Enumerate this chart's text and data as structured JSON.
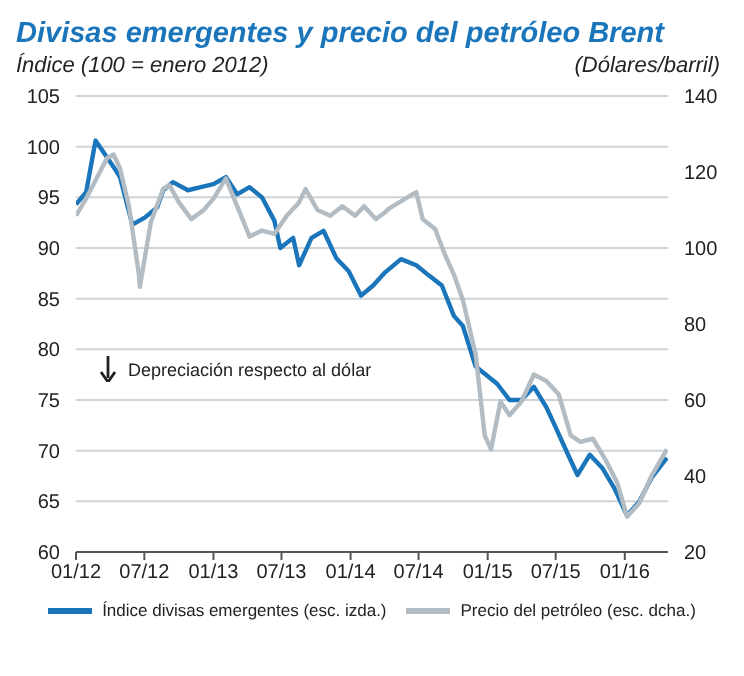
{
  "chart_data": {
    "type": "line",
    "title": "Divisas emergentes y precio del petróleo Brent",
    "ylabel": "Índice  (100 = enero 2012)",
    "y2label": "(Dólares/barril)",
    "annotations": [
      "Depreciación respecto al dólar"
    ],
    "xlim": [
      "2012-01-01",
      "2016-04-25"
    ],
    "xticks": [
      {
        "value": "2012-01-01",
        "label": "01/12"
      },
      {
        "value": "2012-07-01",
        "label": "07/12"
      },
      {
        "value": "2013-01-01",
        "label": "01/13"
      },
      {
        "value": "2013-07-01",
        "label": "07/13"
      },
      {
        "value": "2014-01-01",
        "label": "01/14"
      },
      {
        "value": "2014-07-01",
        "label": "07/14"
      },
      {
        "value": "2015-01-01",
        "label": "01/15"
      },
      {
        "value": "2015-07-01",
        "label": "07/15"
      },
      {
        "value": "2016-01-01",
        "label": "01/16"
      }
    ],
    "ylim": [
      60,
      105
    ],
    "yticks": [
      60,
      65,
      70,
      75,
      80,
      85,
      90,
      95,
      100,
      105
    ],
    "y2lim": [
      20,
      140
    ],
    "y2ticks": [
      20,
      40,
      60,
      80,
      100,
      120,
      140
    ],
    "grid": "y",
    "legend": "bottom",
    "marker": "none",
    "line_style": "solid",
    "series": [
      {
        "name": "Índice divisas emergentes (esc. izda.)",
        "color": "#1a75bb",
        "x": [
          "2012-01-01",
          "2012-01-28",
          "2012-02-22",
          "2012-04-10",
          "2012-04-27",
          "2012-05-30",
          "2012-07-02",
          "2012-08-04",
          "2012-08-20",
          "2012-09-15",
          "2012-10-25",
          "2012-11-28",
          "2013-01-01",
          "2013-02-03",
          "2013-03-05",
          "2013-04-07",
          "2013-05-10",
          "2013-06-12",
          "2013-06-28",
          "2013-08-01",
          "2013-08-17",
          "2013-09-19",
          "2013-10-21",
          "2013-11-24",
          "2013-12-27",
          "2014-01-29",
          "2014-03-02",
          "2014-04-03",
          "2014-05-15",
          "2014-06-25",
          "2014-07-28",
          "2014-09-01",
          "2014-10-03",
          "2014-10-27",
          "2014-11-30",
          "2014-12-24",
          "2015-01-26",
          "2015-02-28",
          "2015-04-01",
          "2015-05-04",
          "2015-06-06",
          "2015-07-01",
          "2015-08-03",
          "2015-08-28",
          "2015-09-30",
          "2015-11-02",
          "2015-12-04",
          "2016-01-07",
          "2016-02-09",
          "2016-03-12",
          "2016-04-22"
        ],
        "values": [
          94.3,
          95.5,
          100.6,
          98,
          97,
          92.3,
          93,
          94,
          95.7,
          96.5,
          95.7,
          96,
          96.3,
          97,
          95.3,
          96,
          95,
          92.7,
          90,
          91,
          88.3,
          91,
          91.7,
          89,
          87.7,
          85.3,
          86.3,
          87.6,
          88.9,
          88.3,
          87.3,
          86.3,
          83.3,
          82.3,
          78.3,
          77.6,
          76.6,
          75,
          75,
          76.3,
          74.3,
          72.3,
          69.6,
          67.6,
          69.6,
          68.3,
          66.3,
          63.6,
          65,
          67.3,
          69.3
        ]
      },
      {
        "name": "Precio del petróleo (esc. dcha.)",
        "color": "#b3bcc2",
        "axis": "y2",
        "x": [
          "2012-01-01",
          "2012-01-28",
          "2012-03-24",
          "2012-04-10",
          "2012-04-27",
          "2012-05-21",
          "2012-06-16",
          "2012-06-19",
          "2012-07-18",
          "2012-08-20",
          "2012-09-06",
          "2012-10-01",
          "2012-11-03",
          "2012-12-06",
          "2013-01-01",
          "2013-02-03",
          "2013-03-05",
          "2013-04-07",
          "2013-05-10",
          "2013-06-12",
          "2013-07-15",
          "2013-08-17",
          "2013-09-03",
          "2013-10-05",
          "2013-11-08",
          "2013-12-10",
          "2014-01-13",
          "2014-02-06",
          "2014-03-09",
          "2014-04-03",
          "2014-04-12",
          "2014-06-09",
          "2014-06-25",
          "2014-07-12",
          "2014-08-14",
          "2014-09-09",
          "2014-10-03",
          "2014-10-27",
          "2014-11-30",
          "2014-12-24",
          "2015-01-10",
          "2015-02-04",
          "2015-02-28",
          "2015-04-01",
          "2015-05-04",
          "2015-06-06",
          "2015-07-09",
          "2015-08-10",
          "2015-09-05",
          "2015-10-08",
          "2015-11-10",
          "2015-12-12",
          "2016-01-07",
          "2016-02-09",
          "2016-03-12",
          "2016-04-22"
        ],
        "values": [
          108.5,
          113,
          123.7,
          124.6,
          121,
          111,
          93.4,
          89.8,
          106.7,
          115.6,
          116.5,
          112,
          107.6,
          110,
          113,
          118.3,
          111,
          103,
          104.6,
          103.7,
          108.5,
          112,
          115.5,
          110,
          108.5,
          111,
          108.5,
          111,
          107.6,
          109.4,
          110.3,
          113.8,
          114.7,
          107.6,
          105,
          98.3,
          93,
          86.3,
          72,
          50.7,
          47,
          59.6,
          56,
          59.6,
          66.7,
          65,
          61.5,
          50.7,
          49,
          49.8,
          44.4,
          38.2,
          29.3,
          32.9,
          40,
          47
        ]
      }
    ]
  }
}
